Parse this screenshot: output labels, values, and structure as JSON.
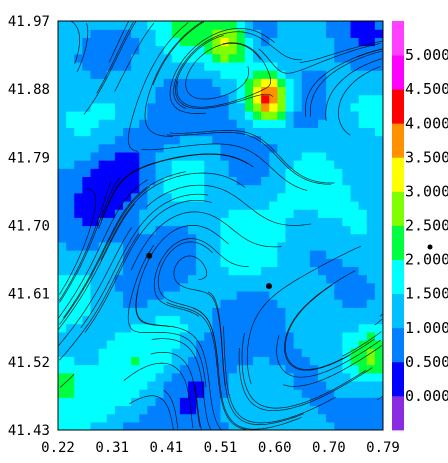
{
  "chart_data": {
    "type": "heatmap",
    "title": "",
    "xlabel": "",
    "ylabel": "",
    "xlim": [
      0.22,
      0.79
    ],
    "ylim": [
      41.43,
      41.97
    ],
    "x_tick_labels": [
      "0.22",
      "0.31",
      "0.41",
      "0.51",
      "0.60",
      "0.70",
      "0.79"
    ],
    "y_tick_labels": [
      "41.43",
      "41.52",
      "41.61",
      "41.70",
      "41.79",
      "41.88",
      "41.97"
    ],
    "overlay": "streamlines",
    "grid": false,
    "colorbar": {
      "location": "right",
      "levels": [
        0.0,
        0.5,
        1.0,
        1.5,
        2.0,
        2.5,
        3.0,
        3.5,
        4.0,
        4.5,
        5.0
      ],
      "tick_labels": [
        "0.000",
        "0.500",
        "1.000",
        "1.500",
        "2.000",
        "2.500",
        "3.000",
        "3.500",
        "4.000",
        "4.500",
        "5.000"
      ],
      "colors": [
        "#8a2be2",
        "#0000ff",
        "#0080ff",
        "#00c0ff",
        "#00ffff",
        "#00ff40",
        "#7fff00",
        "#ffff00",
        "#ff9000",
        "#ff0000",
        "#ff00ff",
        "#ff40ff"
      ]
    },
    "field_summary": {
      "background_range": [
        1.0,
        1.5
      ],
      "low_regions": [
        {
          "x": 0.33,
          "y": 41.77,
          "value": 0.3
        },
        {
          "x": 0.47,
          "y": 41.47,
          "value": 0.4
        },
        {
          "x": 0.58,
          "y": 41.9,
          "value": 0.6
        }
      ],
      "high_regions": [
        {
          "x": 0.59,
          "y": 41.87,
          "value": 4.6
        },
        {
          "x": 0.52,
          "y": 41.94,
          "value": 3.0
        },
        {
          "x": 0.23,
          "y": 41.49,
          "value": 2.3
        },
        {
          "x": 0.77,
          "y": 41.53,
          "value": 2.4
        }
      ]
    },
    "markers": [
      {
        "x": 0.38,
        "y": 41.66
      },
      {
        "x": 0.59,
        "y": 41.62
      }
    ]
  }
}
